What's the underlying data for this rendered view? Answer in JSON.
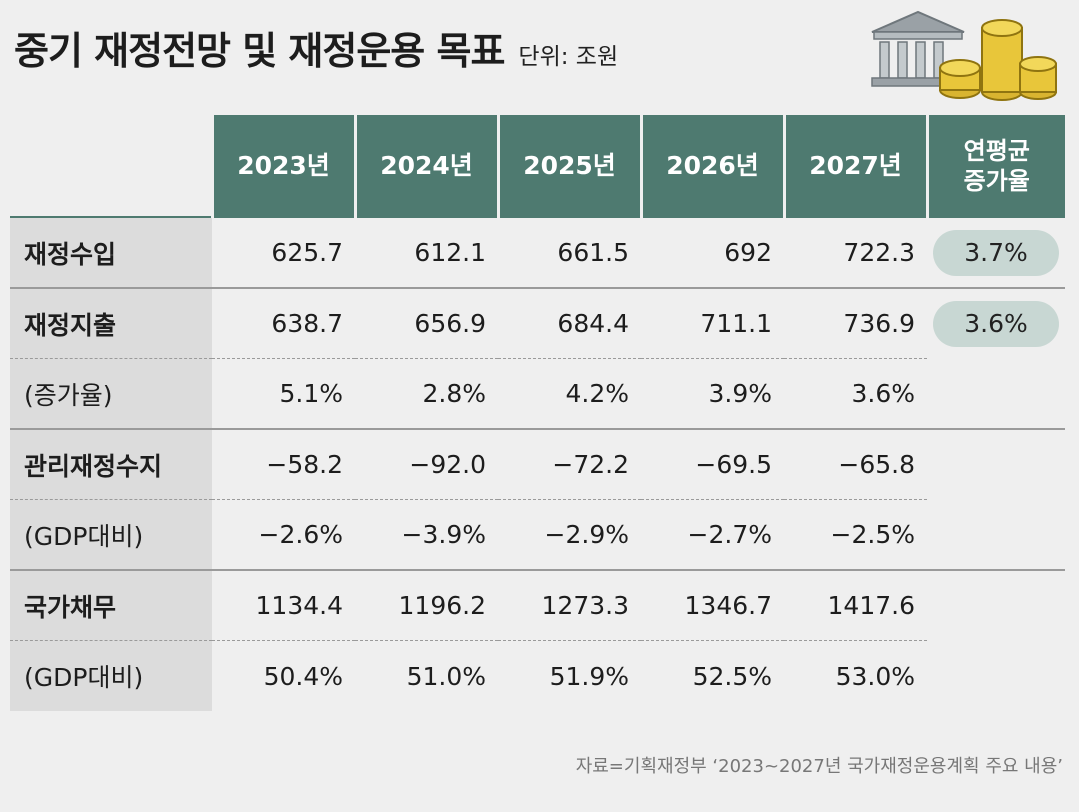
{
  "header": {
    "title": "중기 재정전망 및 재정운용 목표",
    "unit": "단위: 조원"
  },
  "table": {
    "columns": [
      "2023년",
      "2024년",
      "2025년",
      "2026년",
      "2027년"
    ],
    "avg_header_line1": "연평균",
    "avg_header_line2": "증가율",
    "rows": [
      {
        "label": "재정수입",
        "main": true,
        "values": [
          "625.7",
          "612.1",
          "661.5",
          "692",
          "722.3"
        ],
        "avg": "3.7%"
      },
      {
        "label": "재정지출",
        "main": true,
        "values": [
          "638.7",
          "656.9",
          "684.4",
          "711.1",
          "736.9"
        ],
        "avg": "3.6%"
      },
      {
        "label": "(증가율)",
        "main": false,
        "values": [
          "5.1%",
          "2.8%",
          "4.2%",
          "3.9%",
          "3.6%"
        ],
        "avg": ""
      },
      {
        "label": "관리재정수지",
        "main": true,
        "values": [
          "−58.2",
          "−92.0",
          "−72.2",
          "−69.5",
          "−65.8"
        ],
        "avg": ""
      },
      {
        "label": "(GDP대비)",
        "main": false,
        "values": [
          "−2.6%",
          "−3.9%",
          "−2.9%",
          "−2.7%",
          "−2.5%"
        ],
        "avg": ""
      },
      {
        "label": "국가채무",
        "main": true,
        "values": [
          "1134.4",
          "1196.2",
          "1273.3",
          "1346.7",
          "1417.6"
        ],
        "avg": ""
      },
      {
        "label": "(GDP대비)",
        "main": false,
        "values": [
          "50.4%",
          "51.0%",
          "51.9%",
          "52.5%",
          "53.0%"
        ],
        "avg": ""
      }
    ]
  },
  "source": "자료=기획재정부 ‘2023~2027년 국가재정운용계획 주요 내용’",
  "icons": [
    "bank-icon",
    "coin-stack-icon"
  ],
  "colors": {
    "header_bg": "#4e7a70",
    "label_bg": "#dcdcdc",
    "pill_bg": "#c8d7d3",
    "page_bg": "#efefef",
    "coin": "#e8c63a"
  },
  "chart_data": {
    "type": "table",
    "title": "중기 재정전망 및 재정운용 목표",
    "unit": "조원",
    "columns": [
      "2023년",
      "2024년",
      "2025년",
      "2026년",
      "2027년",
      "연평균 증가율"
    ],
    "rows": [
      {
        "name": "재정수입",
        "values": [
          625.7,
          612.1,
          661.5,
          692,
          722.3
        ],
        "avg_growth": "3.7%"
      },
      {
        "name": "재정지출",
        "values": [
          638.7,
          656.9,
          684.4,
          711.1,
          736.9
        ],
        "avg_growth": "3.6%"
      },
      {
        "name": "재정지출 (증가율)",
        "values": [
          "5.1%",
          "2.8%",
          "4.2%",
          "3.9%",
          "3.6%"
        ]
      },
      {
        "name": "관리재정수지",
        "values": [
          -58.2,
          -92.0,
          -72.2,
          -69.5,
          -65.8
        ]
      },
      {
        "name": "관리재정수지 (GDP대비)",
        "values": [
          "-2.6%",
          "-3.9%",
          "-2.9%",
          "-2.7%",
          "-2.5%"
        ]
      },
      {
        "name": "국가채무",
        "values": [
          1134.4,
          1196.2,
          1273.3,
          1346.7,
          1417.6
        ]
      },
      {
        "name": "국가채무 (GDP대비)",
        "values": [
          "50.4%",
          "51.0%",
          "51.9%",
          "52.5%",
          "53.0%"
        ]
      }
    ]
  }
}
